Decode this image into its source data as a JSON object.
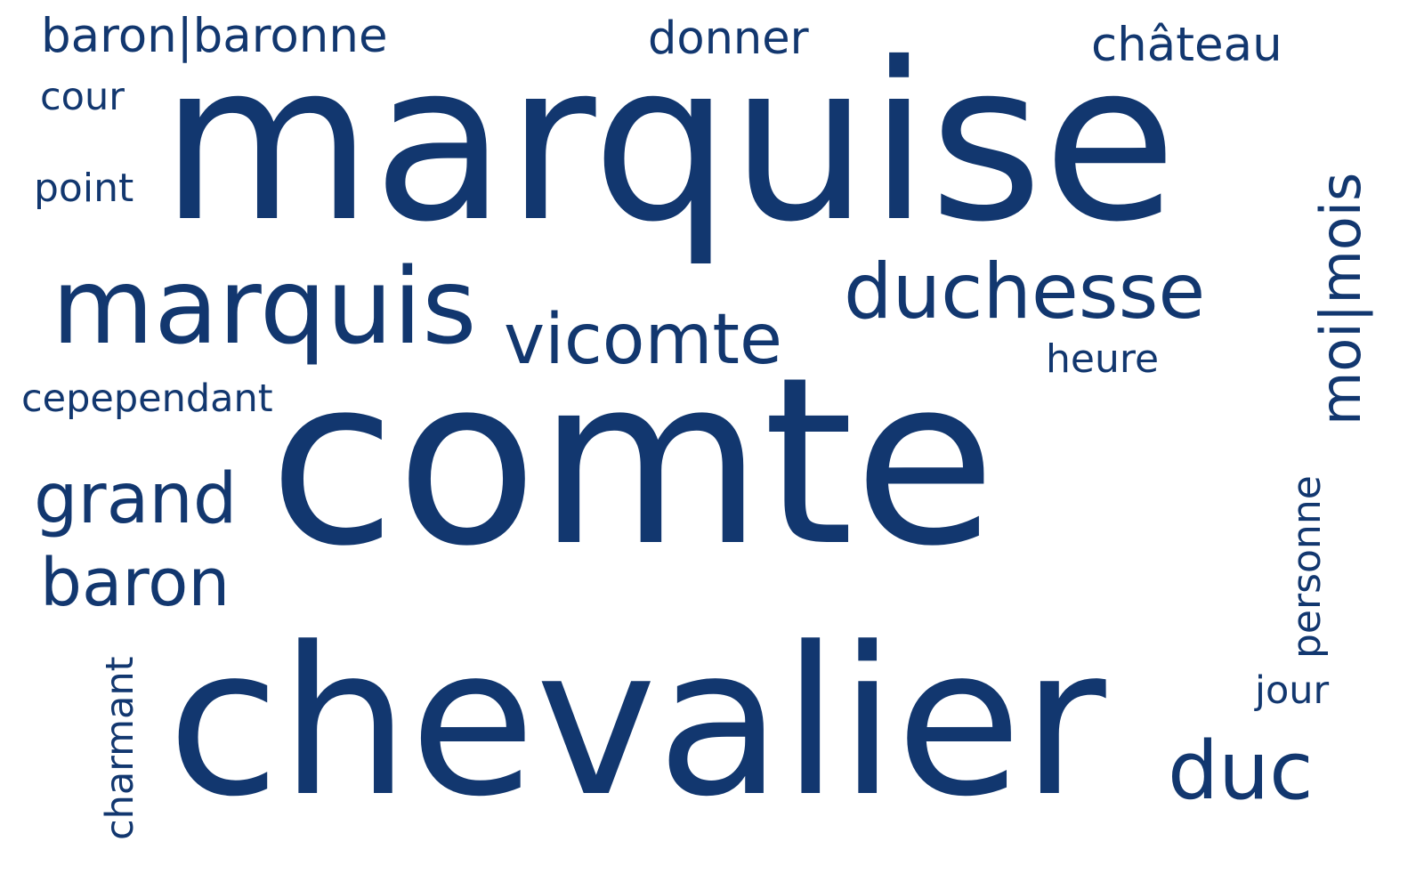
{
  "word_cloud": {
    "color": "#12376f",
    "words": [
      "comte",
      "marquise",
      "chevalier",
      "marquis",
      "vicomte",
      "duchesse",
      "baron",
      "grand",
      "duc",
      "moi|mois",
      "baron|baronne",
      "donner",
      "château",
      "personne",
      "heure",
      "cepependant",
      "point",
      "cour",
      "charmant",
      "jour"
    ]
  }
}
